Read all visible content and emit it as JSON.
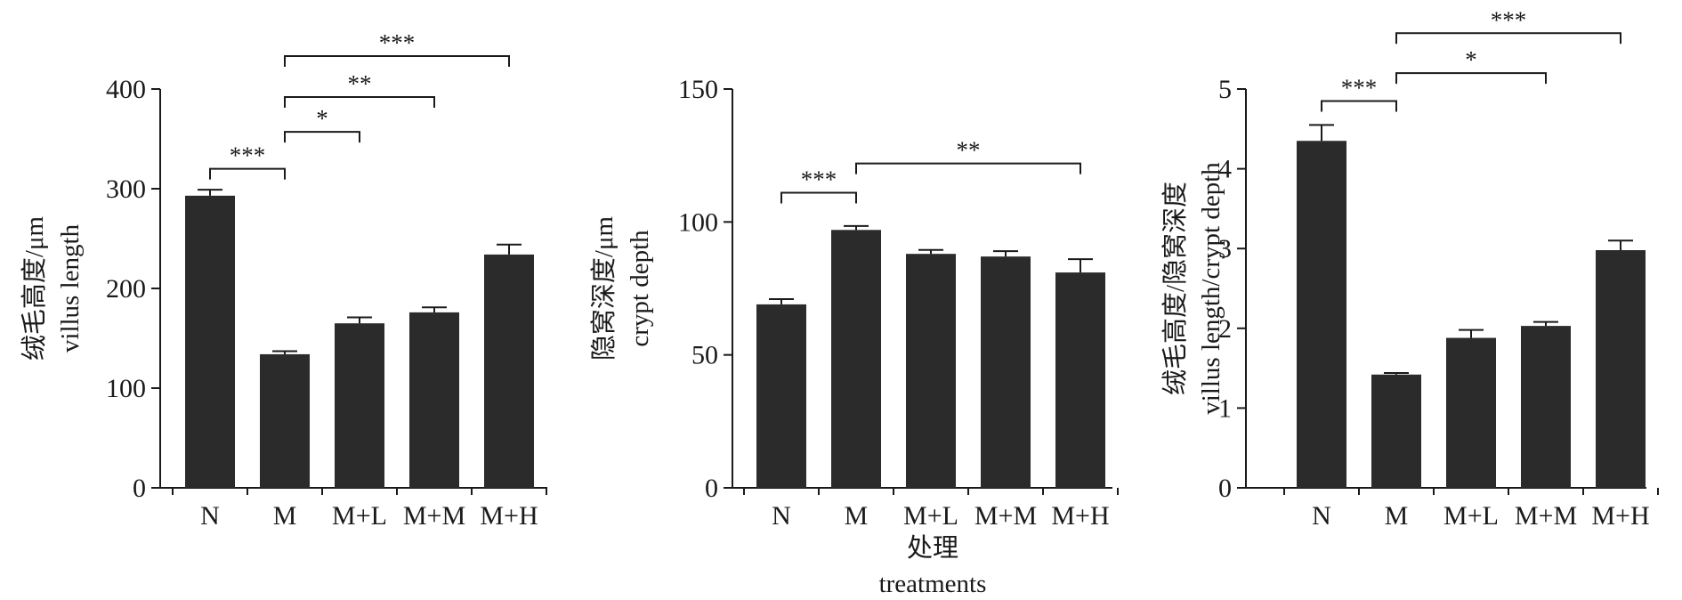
{
  "chart_data": [
    {
      "type": "bar",
      "categories": [
        "N",
        "M",
        "M+L",
        "M+M",
        "M+H"
      ],
      "values": [
        293,
        134,
        165,
        176,
        234
      ],
      "errors": [
        6,
        3,
        6,
        5,
        10
      ],
      "ylim": [
        0,
        400
      ],
      "yticks": [
        "0",
        "100",
        "200",
        "300",
        "400"
      ],
      "ylabel_zh": "绒毛高度/μm",
      "ylabel_en": "villus length",
      "significance": [
        {
          "from": 0,
          "to": 1,
          "label": "***",
          "level": 320
        },
        {
          "from": 1,
          "to": 2,
          "label": "*",
          "level": 357
        },
        {
          "from": 1,
          "to": 3,
          "label": "**",
          "level": 392
        },
        {
          "from": 1,
          "to": 4,
          "label": "***",
          "level": 433
        }
      ]
    },
    {
      "type": "bar",
      "categories": [
        "N",
        "M",
        "M+L",
        "M+M",
        "M+H"
      ],
      "values": [
        69,
        97,
        88,
        87,
        81
      ],
      "errors": [
        2,
        1.5,
        1.5,
        2,
        5
      ],
      "ylim": [
        0,
        150
      ],
      "yticks": [
        "0",
        "50",
        "100",
        "150"
      ],
      "ylabel_zh": "隐窝深度/μm",
      "ylabel_en": "crypt depth",
      "significance": [
        {
          "from": 0,
          "to": 1,
          "label": "***",
          "level": 111
        },
        {
          "from": 1,
          "to": 4,
          "label": "**",
          "level": 122
        }
      ]
    },
    {
      "type": "bar",
      "categories": [
        "N",
        "M",
        "M+L",
        "M+M",
        "M+H"
      ],
      "values": [
        4.35,
        1.42,
        1.88,
        2.03,
        2.98
      ],
      "errors": [
        0.2,
        0.02,
        0.1,
        0.05,
        0.12
      ],
      "ylim": [
        0,
        5
      ],
      "yticks": [
        "0",
        "1",
        "2",
        "3",
        "4",
        "5"
      ],
      "ylabel_zh": "绒毛高度/隐窝深度",
      "ylabel_en": "villus length/crypt depth",
      "significance": [
        {
          "from": 0,
          "to": 1,
          "label": "***",
          "level": 4.85
        },
        {
          "from": 1,
          "to": 3,
          "label": "*",
          "level": 5.2
        },
        {
          "from": 1,
          "to": 4,
          "label": "***",
          "level": 5.7
        }
      ]
    }
  ],
  "xlabel_zh": "处理",
  "xlabel_en": "treatments"
}
